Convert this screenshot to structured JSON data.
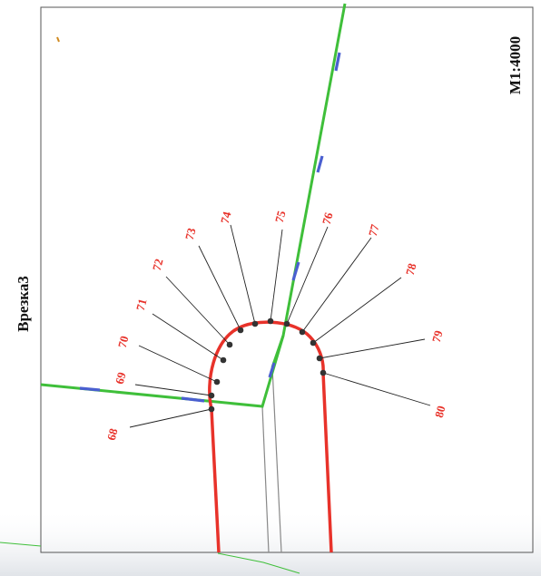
{
  "title": "Врезка3",
  "scale": "M1:4000",
  "colors": {
    "curve": "#e8322a",
    "road": "#3fbf3a",
    "road_accent": "#4a5fd0",
    "leader": "#222222",
    "point": "#333333",
    "frame": "#555555"
  },
  "points": [
    "68",
    "69",
    "70",
    "71",
    "72",
    "73",
    "74",
    "75",
    "76",
    "77",
    "78",
    "79",
    "80"
  ]
}
